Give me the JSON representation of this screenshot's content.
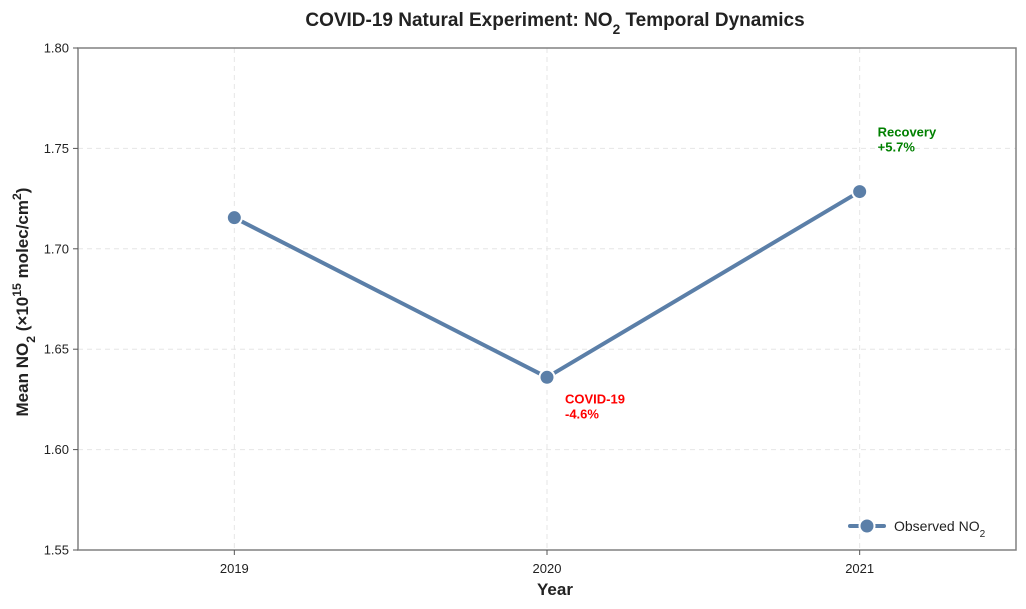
{
  "chart_data": {
    "type": "line",
    "title": {
      "prefix": "COVID-19 Natural Experiment: NO",
      "sub": "2",
      "suffix": " Temporal Dynamics"
    },
    "xlabel": "Year",
    "ylabel": {
      "p1": "Mean NO",
      "s1": "2",
      "p2": " (×10",
      "s2": "15",
      "p3": " molec/cm",
      "s3": "2",
      "p4": ")"
    },
    "categories": [
      "2019",
      "2020",
      "2021"
    ],
    "xlim": [
      -0.5,
      2.5
    ],
    "ylim": [
      1.55,
      1.8
    ],
    "yticks": [
      1.55,
      1.6,
      1.65,
      1.7,
      1.75,
      1.8
    ],
    "ytick_labels": [
      "1.55",
      "1.60",
      "1.65",
      "1.70",
      "1.75",
      "1.80"
    ],
    "grid": true,
    "series": [
      {
        "name": "Observed NO2",
        "values": [
          1.7155,
          1.636,
          1.7285
        ],
        "color": "#5b7fa8"
      }
    ],
    "legend": {
      "position": "bottom-right",
      "label_prefix": "Observed NO",
      "label_sub": "2"
    },
    "annotations": [
      {
        "line1": "COVID-19",
        "line2": "-4.6%",
        "color": "#ff0000"
      },
      {
        "line1": "Recovery",
        "line2": "+5.7%",
        "color": "#008000"
      }
    ]
  }
}
